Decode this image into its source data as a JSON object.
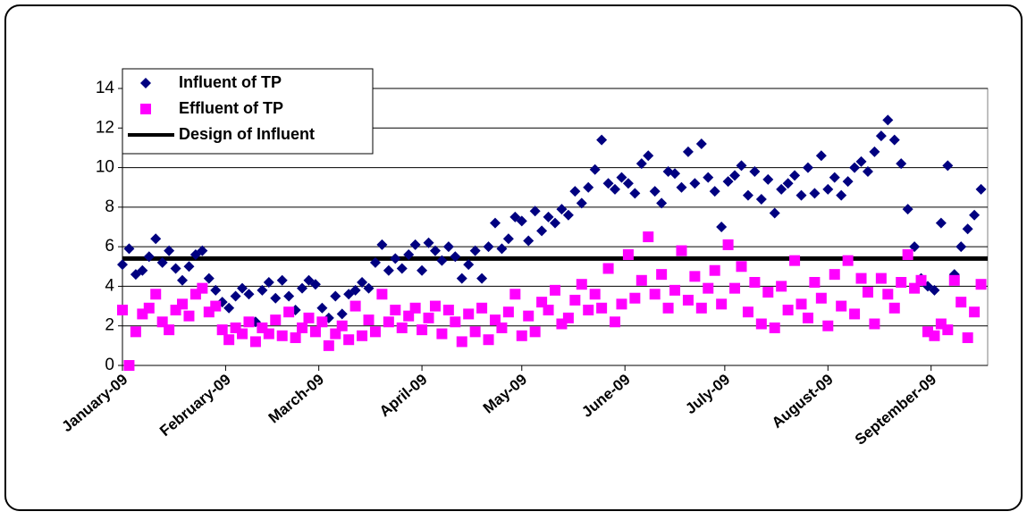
{
  "chart_data": {
    "type": "scatter",
    "x": [
      0,
      2,
      4,
      6,
      8,
      10,
      12,
      14,
      16,
      18,
      20,
      22,
      24,
      26,
      28,
      30,
      32,
      34,
      36,
      38,
      40,
      42,
      44,
      46,
      48,
      50,
      52,
      54,
      56,
      58,
      60,
      62,
      64,
      66,
      68,
      70,
      72,
      74,
      76,
      78,
      80,
      82,
      84,
      86,
      88,
      90,
      92,
      94,
      96,
      98,
      100,
      102,
      104,
      106,
      108,
      110,
      112,
      114,
      116,
      118,
      120,
      122,
      124,
      126,
      128,
      130,
      132,
      134,
      136,
      138,
      140,
      142,
      144,
      146,
      148,
      150,
      152,
      154,
      156,
      158,
      160,
      162,
      164,
      166,
      168,
      170,
      172,
      174,
      176,
      178,
      180,
      182,
      184,
      186,
      188,
      190,
      192,
      194,
      196,
      198,
      200,
      202,
      204,
      206,
      208,
      210,
      212,
      214,
      216,
      218,
      220,
      222,
      224,
      226,
      228,
      230,
      232,
      234,
      236,
      238,
      240,
      242,
      244,
      246,
      248,
      250,
      252,
      254,
      256,
      258
    ],
    "series": [
      {
        "name": "Influent of TP",
        "color": "#000080",
        "marker": "diamond",
        "values": [
          5.1,
          5.9,
          4.6,
          4.8,
          5.5,
          6.4,
          5.2,
          5.8,
          4.9,
          4.3,
          5.0,
          5.6,
          5.8,
          4.4,
          3.8,
          3.2,
          2.9,
          3.5,
          3.9,
          3.6,
          2.2,
          3.8,
          4.2,
          3.4,
          4.3,
          3.5,
          2.8,
          3.9,
          4.3,
          4.1,
          2.9,
          2.4,
          3.5,
          2.6,
          3.6,
          3.8,
          4.2,
          3.9,
          5.2,
          6.1,
          4.8,
          5.4,
          4.9,
          5.6,
          6.1,
          4.8,
          6.2,
          5.8,
          5.3,
          6.0,
          5.5,
          4.4,
          5.1,
          5.8,
          4.4,
          6.0,
          7.2,
          5.9,
          6.4,
          7.5,
          7.3,
          6.3,
          7.8,
          6.8,
          7.5,
          7.2,
          7.9,
          7.6,
          8.8,
          8.2,
          9.0,
          9.9,
          11.4,
          9.2,
          8.9,
          9.5,
          9.2,
          8.7,
          10.2,
          10.6,
          8.8,
          8.2,
          9.8,
          9.7,
          9.0,
          10.8,
          9.2,
          11.2,
          9.5,
          8.8,
          7.0,
          9.3,
          9.6,
          10.1,
          8.6,
          9.8,
          8.4,
          9.4,
          7.7,
          8.9,
          9.2,
          9.6,
          8.6,
          10.0,
          8.7,
          10.6,
          8.9,
          9.5,
          8.6,
          9.3,
          10.0,
          10.3,
          9.8,
          10.8,
          11.6,
          12.4,
          11.4,
          10.2,
          7.9,
          6.0,
          4.4,
          4.0,
          3.8,
          7.2,
          10.1,
          4.6,
          6.0,
          6.9,
          7.6,
          8.9
        ]
      },
      {
        "name": "Effluent of TP",
        "color": "#FF00FF",
        "marker": "square",
        "values": [
          2.8,
          0,
          1.7,
          2.6,
          2.9,
          3.6,
          2.2,
          1.8,
          2.8,
          3.1,
          2.5,
          3.6,
          3.9,
          2.7,
          3.0,
          1.8,
          1.3,
          1.9,
          1.6,
          2.2,
          1.2,
          1.9,
          1.6,
          2.3,
          1.5,
          2.7,
          1.4,
          1.9,
          2.4,
          1.7,
          2.2,
          1.0,
          1.6,
          2.0,
          1.3,
          3.0,
          1.5,
          2.3,
          1.7,
          3.6,
          2.2,
          2.8,
          1.9,
          2.5,
          2.9,
          1.8,
          2.4,
          3.0,
          1.6,
          2.8,
          2.2,
          1.2,
          2.6,
          1.7,
          2.9,
          1.3,
          2.3,
          1.9,
          2.7,
          3.6,
          1.5,
          2.5,
          1.7,
          3.2,
          2.8,
          3.8,
          2.1,
          2.4,
          3.3,
          4.1,
          2.8,
          3.6,
          2.9,
          4.9,
          2.2,
          3.1,
          5.6,
          3.4,
          4.3,
          6.5,
          3.6,
          4.6,
          2.9,
          3.8,
          5.8,
          3.3,
          4.5,
          2.9,
          3.9,
          4.8,
          3.1,
          6.1,
          3.9,
          5.0,
          2.7,
          4.2,
          2.1,
          3.7,
          1.9,
          4.0,
          2.8,
          5.3,
          3.1,
          2.4,
          4.2,
          3.4,
          2.0,
          4.6,
          3.0,
          5.3,
          2.6,
          4.4,
          3.7,
          2.1,
          4.4,
          3.6,
          2.9,
          4.2,
          5.6,
          3.9,
          4.3,
          1.7,
          1.5,
          2.1,
          1.8,
          4.3,
          3.2,
          1.4,
          2.7,
          4.1
        ]
      }
    ],
    "reference_lines": [
      {
        "name": "Design of Influent",
        "value": 5.4,
        "color": "#000000"
      }
    ],
    "xlim": [
      0,
      260
    ],
    "xticks": [
      {
        "value": 0,
        "label": "January-09"
      },
      {
        "value": 31,
        "label": "February-09"
      },
      {
        "value": 59,
        "label": "March-09"
      },
      {
        "value": 90,
        "label": "April-09"
      },
      {
        "value": 120,
        "label": "May-09"
      },
      {
        "value": 151,
        "label": "June-09"
      },
      {
        "value": 181,
        "label": "July-09"
      },
      {
        "value": 212,
        "label": "August-09"
      },
      {
        "value": 243,
        "label": "September-09"
      }
    ],
    "ylim": [
      0,
      14
    ],
    "yticks": [
      0,
      2,
      4,
      6,
      8,
      10,
      12,
      14
    ],
    "grid": true,
    "legend": "top-left"
  }
}
